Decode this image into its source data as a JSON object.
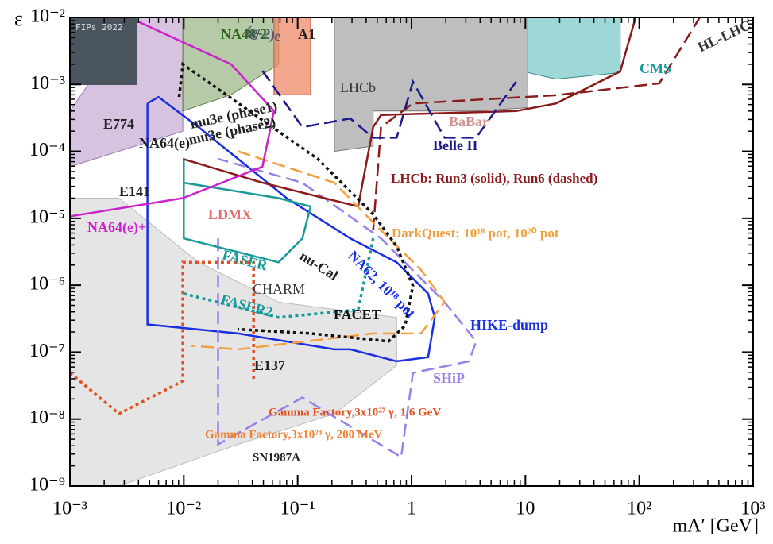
{
  "chart_data": {
    "type": "line",
    "x_label": "mA′ [GeV]",
    "y_label": "ε",
    "xscale": "log",
    "yscale": "log",
    "xlim": [
      0.001,
      1000
    ],
    "ylim": [
      1e-09,
      0.01
    ],
    "xticks": [
      {
        "value": 0.001,
        "label": "10⁻³"
      },
      {
        "value": 0.01,
        "label": "10⁻²"
      },
      {
        "value": 0.1,
        "label": "10⁻¹"
      },
      1,
      10,
      {
        "value": 100,
        "label": "10²"
      },
      {
        "value": 1000,
        "label": "10³"
      }
    ],
    "yticks": [
      {
        "value": 1e-09,
        "label": "10⁻⁹"
      },
      {
        "value": 1e-08,
        "label": "10⁻⁸"
      },
      {
        "value": 1e-07,
        "label": "10⁻⁷"
      },
      {
        "value": 1e-06,
        "label": "10⁻⁶"
      },
      {
        "value": 1e-05,
        "label": "10⁻⁵"
      },
      {
        "value": 0.0001,
        "label": "10⁻⁴"
      },
      {
        "value": 0.001,
        "label": "10⁻³"
      },
      {
        "value": 0.01,
        "label": "10⁻²"
      }
    ],
    "series": [
      {
        "color": "#bdbdbd",
        "style": "solid",
        "fill": "#dcdcdc",
        "x": [
          0.001,
          0.0027,
          0.0135,
          0.068,
          0.74,
          0.74,
          0.21,
          0.03,
          0.0027,
          0.001
        ],
        "values": [
          2e-05,
          2e-05,
          2.2e-06,
          5.6e-07,
          3.3e-07,
          6.3e-08,
          1.2e-08,
          4.2e-09,
          1e-09,
          1e-09
        ]
      },
      {
        "color": "#9a7bb0",
        "style": "solid",
        "fill": "#c9aed6",
        "x": [
          0.001,
          0.0098,
          0.0098,
          0.0037,
          0.001
        ],
        "values": [
          5.9e-05,
          0.0002,
          0.01,
          0.01,
          0.0004
        ]
      },
      {
        "color": "#5a7a3a",
        "style": "solid",
        "fill": "#9fb88a",
        "x": [
          0.0098,
          0.0098,
          0.026,
          0.068,
          0.068
        ],
        "values": [
          0.01,
          0.0004,
          0.0007,
          0.002,
          0.01
        ]
      },
      {
        "color": "#c05a40",
        "style": "solid",
        "fill": "#f08a6a",
        "x": [
          0.062,
          0.062,
          0.13,
          0.13
        ],
        "values": [
          0.01,
          0.0007,
          0.0007,
          0.01
        ]
      },
      {
        "color": "#777777",
        "style": "solid",
        "fill": "#a8a8a8",
        "x": [
          0.21,
          0.21,
          0.46,
          0.46,
          3.7,
          10.5,
          10.5
        ],
        "values": [
          0.01,
          0.0001,
          0.00012,
          0.0004,
          0.0004,
          0.00045,
          0.01
        ]
      },
      {
        "color": "#3a8a8a",
        "style": "solid",
        "fill": "#7ecaca",
        "x": [
          10.5,
          10.5,
          18.6,
          68,
          68
        ],
        "values": [
          0.01,
          0.0015,
          0.0012,
          0.0015,
          0.01
        ]
      },
      {
        "color": "#1a2fe0",
        "style": "solid",
        "x": [
          0.0048,
          0.0048,
          0.03,
          0.21,
          0.29,
          0.74,
          1.4,
          1.6,
          1.4,
          0.74,
          0.29,
          0.08,
          0.03,
          0.0135,
          0.006,
          0.0048
        ],
        "values": [
          0.00052,
          2.6e-07,
          1.9e-07,
          1.1e-07,
          1.1e-07,
          7.3e-08,
          8.4e-08,
          3.3e-07,
          7.5e-07,
          2.2e-06,
          5e-06,
          2e-05,
          7.7e-05,
          0.00023,
          0.00065,
          0.00052
        ]
      },
      {
        "color": "#9b7fe8",
        "style": "dashed",
        "x": [
          0.02,
          0.02,
          0.11,
          0.81,
          1.03,
          3.2,
          3.7,
          1.95,
          0.54,
          0.11,
          0.02
        ],
        "values": [
          5e-06,
          4.2e-09,
          2.1e-08,
          2.7e-09,
          4.9e-08,
          7.3e-08,
          1.45e-07,
          5.6e-07,
          5e-06,
          3.4e-05,
          7.7e-05
        ]
      },
      {
        "color": "#8b1a1a",
        "style": "solid",
        "x": [
          0.0098,
          0.049,
          0.34,
          0.46,
          0.54,
          8.3,
          18.6,
          68,
          93
        ],
        "values": [
          7.7e-05,
          3.4e-05,
          1.5e-05,
          0.00023,
          0.00035,
          0.0004,
          0.00052,
          0.00156,
          0.01
        ]
      },
      {
        "color": "#8b1a1a",
        "style": "dashed",
        "x": [
          0.46,
          0.54,
          1.03,
          18.6,
          150,
          340
        ],
        "values": [
          6.6e-06,
          0.00023,
          0.00052,
          0.00069,
          0.00104,
          0.01
        ]
      },
      {
        "color": "#f0a040",
        "style": "dashed",
        "x": [
          0.03,
          0.21,
          0.54,
          1.21,
          1.95,
          1.21,
          0.46,
          0.03,
          0.0115
        ],
        "values": [
          0.0001,
          3.4e-05,
          6.6e-06,
          1.7e-06,
          5.6e-07,
          1.9e-07,
          1.9e-07,
          1.1e-07,
          1.25e-07
        ]
      },
      {
        "color": "#1a9a9a",
        "style": "solid",
        "x": [
          0.01,
          0.01,
          0.068,
          0.11,
          0.13,
          0.068,
          0.01
        ],
        "values": [
          7.7e-05,
          5e-06,
          2.2e-06,
          5e-06,
          1.5e-05,
          2e-05,
          3.4e-05
        ]
      },
      {
        "color": "#1a9a9a",
        "style": "dotted",
        "x": [
          0.01,
          0.068,
          0.34,
          0.46
        ],
        "values": [
          7.5e-07,
          3.3e-07,
          4.3e-07,
          5e-06
        ]
      },
      {
        "color": "#111111",
        "style": "dotted",
        "x": [
          0.0091,
          0.0098,
          0.15,
          0.46,
          0.74,
          1.03,
          0.88,
          0.63,
          0.13,
          0.03
        ],
        "values": [
          0.00065,
          0.002,
          7.7e-05,
          1.15e-05,
          3.8e-06,
          9.8e-07,
          2.5e-07,
          1.45e-07,
          1.9e-07,
          2.2e-07
        ]
      },
      {
        "color": "#cc22cc",
        "style": "solid",
        "x": [
          0.001,
          0.0098,
          0.049,
          0.062,
          0.026,
          0.0037
        ],
        "values": [
          1.07e-05,
          2e-05,
          5.9e-05,
          0.0004,
          0.002,
          0.0092
        ]
      },
      {
        "color": "#e05020",
        "style": "dotted",
        "x": [
          0.001,
          0.0027,
          0.0098,
          0.0098,
          0.041,
          0.041
        ],
        "values": [
          4.9e-08,
          1.2e-08,
          3.7e-08,
          2.2e-06,
          2.2e-06,
          3.7e-08
        ]
      },
      {
        "color": "#1a1a8c",
        "style": "dashed",
        "x": [
          0.049,
          0.11,
          0.29,
          0.46,
          0.74,
          1.03,
          1.95,
          3.7,
          8.3
        ],
        "values": [
          0.0016,
          0.00023,
          0.00031,
          0.00016,
          0.00016,
          0.0011,
          0.00016,
          0.00016,
          0.0011
        ]
      }
    ],
    "annotations": [
      {
        "text": "E774",
        "color": "#222222"
      },
      {
        "text": "NA64(e)",
        "color": "#222222"
      },
      {
        "text": "E141",
        "color": "#222222"
      },
      {
        "text": "NA64(e)+",
        "color": "#cc22cc"
      },
      {
        "text": "LDMX",
        "color": "#e07070"
      },
      {
        "text": "FASER",
        "color": "#1a9a9a"
      },
      {
        "text": "FASER2",
        "color": "#1a9a9a"
      },
      {
        "text": "CHARM",
        "color": "#333333"
      },
      {
        "text": "E137",
        "color": "#222222"
      },
      {
        "text": "FACET",
        "color": "#111111"
      },
      {
        "text": "nu-Cal",
        "color": "#222222"
      },
      {
        "text": "NA62, 10¹⁸ pot",
        "color": "#1a2fe0"
      },
      {
        "text": "HIKE-dump",
        "color": "#1a2fe0"
      },
      {
        "text": "SHiP",
        "color": "#9b7fe8"
      },
      {
        "text": "Belle II",
        "color": "#1a1a8c"
      },
      {
        "text": "LHCb",
        "color": "#333333"
      },
      {
        "text": "BaBar",
        "color": "#d09090"
      },
      {
        "text": "CMS",
        "color": "#1a9a9a"
      },
      {
        "text": "HL-LHC",
        "color": "#333333"
      },
      {
        "text": "A1",
        "color": "#222222"
      },
      {
        "text": "NA48/2",
        "color": "#2a6a1a"
      },
      {
        "text": "(g-2)e",
        "color": "#555577"
      },
      {
        "text": "mu3e (phase1)",
        "color": "#222222"
      },
      {
        "text": "mu3e (phase2)",
        "color": "#222222"
      },
      {
        "text": "LHCb: Run3 (solid), Run6 (dashed)",
        "color": "#8b1a1a"
      },
      {
        "text": "DarkQuest: 10¹⁸ pot, 10²⁰ pot",
        "color": "#f0a040"
      },
      {
        "text": "Gamma Factory,3x10²⁷ γ, 1.6 GeV",
        "color": "#e05020"
      },
      {
        "text": "Gamma Factory,3x10²⁴ γ, 200 MeV",
        "color": "#f08030"
      },
      {
        "text": "SN1987A",
        "color": "#222222"
      },
      {
        "text": "FIPs 2022",
        "color": "#dddddd"
      }
    ]
  }
}
